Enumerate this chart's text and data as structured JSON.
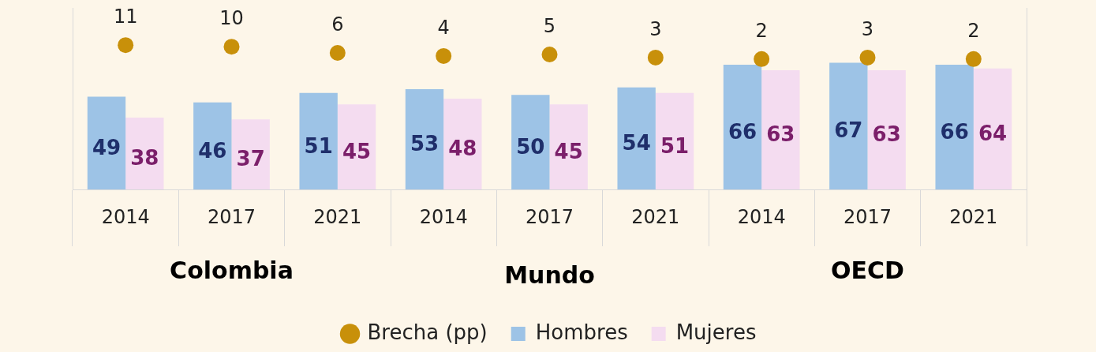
{
  "chart_data": {
    "type": "bar",
    "categories": [
      "2014",
      "2017",
      "2021",
      "2014",
      "2017",
      "2021",
      "2014",
      "2017",
      "2021"
    ],
    "series": [
      {
        "name": "Hombres",
        "color": "#9dc3e6",
        "values": [
          49,
          46,
          51,
          53,
          50,
          54,
          66,
          67,
          66
        ]
      },
      {
        "name": "Mujeres",
        "color": "#f4dcf0",
        "values": [
          38,
          37,
          45,
          48,
          45,
          51,
          63,
          63,
          64
        ]
      },
      {
        "name": "Brecha (pp)",
        "type": "scatter",
        "axis": "y2",
        "color": "#c8900a",
        "values": [
          11,
          10,
          6,
          4,
          5,
          3,
          2,
          3,
          2
        ]
      }
    ],
    "ylim": [
      0,
      96
    ],
    "y2lim": [
      -82,
      35
    ],
    "data_labels": true,
    "legend": "bottom",
    "marker": "circle",
    "tick_labels": "x",
    "annotations": [
      "Colombia",
      "Mundo",
      "OECD"
    ]
  }
}
